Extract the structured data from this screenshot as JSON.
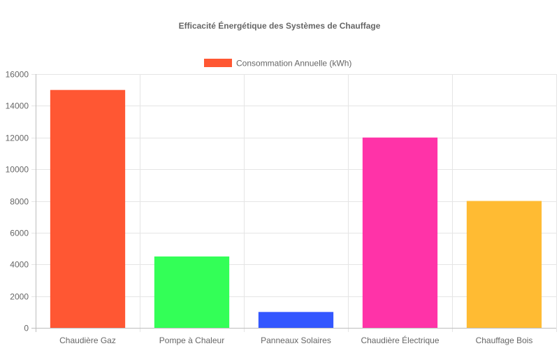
{
  "chart_data": {
    "type": "bar",
    "title": "Efficacité Énergétique des Systèmes de Chauffage",
    "categories": [
      "Chaudière Gaz",
      "Pompe à Chaleur",
      "Panneaux Solaires",
      "Chaudière Électrique",
      "Chauffage Bois"
    ],
    "series": [
      {
        "name": "Consommation Annuelle (kWh)",
        "values": [
          15000,
          4500,
          1000,
          12000,
          8000
        ]
      }
    ],
    "bar_colors": [
      "#ff5733",
      "#33ff57",
      "#3357ff",
      "#ff33a8",
      "#ffbb33"
    ],
    "legend_color": "#ff5733",
    "ylim": [
      0,
      16000
    ],
    "yticks": [
      0,
      2000,
      4000,
      6000,
      8000,
      10000,
      12000,
      14000,
      16000
    ],
    "grid": true,
    "legend_position": "top"
  }
}
